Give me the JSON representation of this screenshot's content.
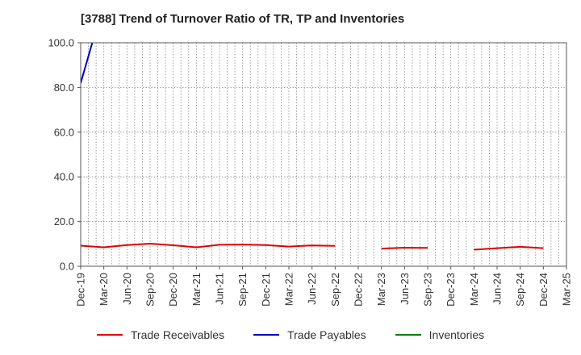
{
  "chart_data": {
    "type": "line",
    "title": "[3788]  Trend of Turnover Ratio of TR, TP and Inventories",
    "xlabel": "",
    "ylabel": "",
    "ylim": [
      0,
      100
    ],
    "y_ticks": [
      "0.0",
      "20.0",
      "40.0",
      "60.0",
      "80.0",
      "100.0"
    ],
    "x_tick_labels": [
      "Dec-19",
      "Mar-20",
      "Jun-20",
      "Sep-20",
      "Dec-20",
      "Mar-21",
      "Jun-21",
      "Sep-21",
      "Dec-21",
      "Mar-22",
      "Jun-22",
      "Sep-22",
      "Dec-22",
      "Mar-23",
      "Jun-23",
      "Sep-23",
      "Dec-23",
      "Mar-24",
      "Jun-24",
      "Sep-24",
      "Dec-24",
      "Mar-25"
    ],
    "grid": true,
    "legend_position": "bottom",
    "series": [
      {
        "name": "Trade Receivables",
        "color": "#e00000",
        "values": [
          9.2,
          8.5,
          9.5,
          10.1,
          9.4,
          8.5,
          9.6,
          9.7,
          9.5,
          8.8,
          9.3,
          9.1,
          null,
          7.9,
          8.3,
          8.2,
          null,
          7.4,
          8.1,
          8.7,
          8.1,
          null
        ]
      },
      {
        "name": "Trade Payables",
        "color": "#0000cc",
        "values": [
          82.0,
          118.0,
          null,
          null,
          null,
          null,
          null,
          null,
          null,
          null,
          null,
          null,
          null,
          null,
          null,
          null,
          null,
          null,
          null,
          null,
          null,
          null
        ]
      },
      {
        "name": "Inventories",
        "color": "#008000",
        "values": [
          null,
          null,
          null,
          null,
          null,
          null,
          null,
          null,
          null,
          null,
          null,
          null,
          null,
          null,
          null,
          null,
          null,
          null,
          null,
          null,
          null,
          null
        ]
      }
    ]
  }
}
